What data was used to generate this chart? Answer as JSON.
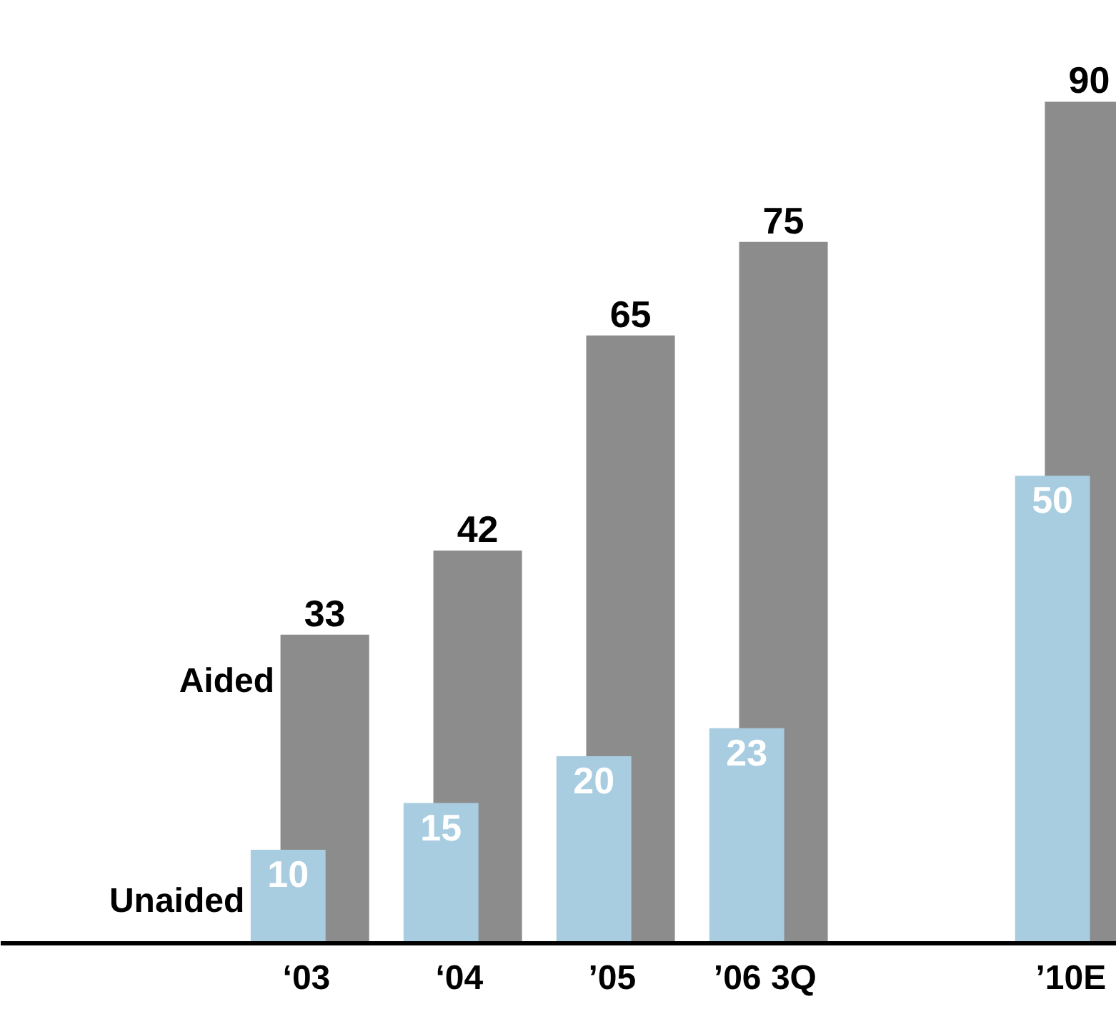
{
  "chart_data": {
    "type": "bar",
    "categories": [
      "‘03",
      "‘04",
      "’05",
      "’06 3Q",
      null,
      "’10E"
    ],
    "series": [
      {
        "name": "Aided",
        "color": "#8c8c8c",
        "values": [
          33,
          42,
          65,
          75,
          null,
          90
        ]
      },
      {
        "name": "Unaided",
        "color": "#a9cde0",
        "values": [
          10,
          15,
          20,
          23,
          null,
          50
        ]
      }
    ],
    "data_labels": true,
    "grid": false
  }
}
